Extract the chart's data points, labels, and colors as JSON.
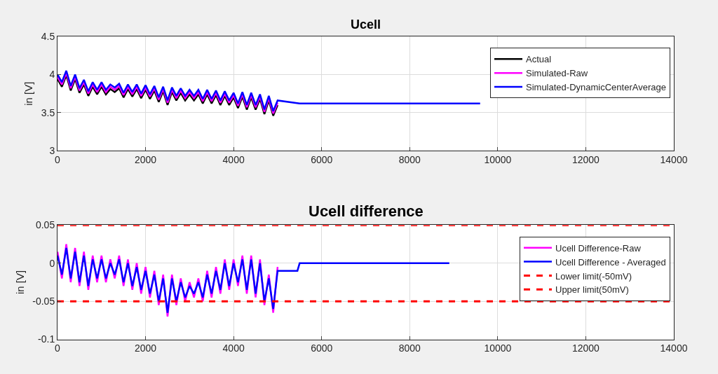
{
  "chart_data": [
    {
      "type": "line",
      "title": "Ucell",
      "ylabel": "in [V]",
      "xlim": [
        0,
        14000
      ],
      "xticks": [
        0,
        2000,
        4000,
        6000,
        8000,
        10000,
        12000,
        14000
      ],
      "ylim": [
        3,
        4.5
      ],
      "yticks": [
        3,
        3.5,
        4,
        4.5
      ],
      "grid": true,
      "legend": "top right",
      "line_style": "solid",
      "x": [
        0,
        100,
        200,
        300,
        400,
        500,
        600,
        700,
        800,
        900,
        1000,
        1100,
        1200,
        1300,
        1400,
        1500,
        1600,
        1700,
        1800,
        1900,
        2000,
        2100,
        2200,
        2300,
        2400,
        2500,
        2600,
        2700,
        2800,
        2900,
        3000,
        3100,
        3200,
        3300,
        3400,
        3500,
        3600,
        3700,
        3800,
        3900,
        4000,
        4100,
        4200,
        4300,
        4400,
        4500,
        4600,
        4700,
        4800,
        4900,
        5000,
        5500,
        9600
      ],
      "series": [
        {
          "name": "Actual",
          "color": "#000000",
          "values": [
            3.94,
            3.84,
            3.99,
            3.79,
            3.94,
            3.76,
            3.87,
            3.72,
            3.84,
            3.74,
            3.84,
            3.74,
            3.81,
            3.77,
            3.82,
            3.7,
            3.81,
            3.71,
            3.81,
            3.69,
            3.8,
            3.68,
            3.79,
            3.64,
            3.78,
            3.6,
            3.77,
            3.66,
            3.76,
            3.66,
            3.74,
            3.66,
            3.74,
            3.62,
            3.74,
            3.62,
            3.73,
            3.6,
            3.72,
            3.6,
            3.7,
            3.56,
            3.71,
            3.54,
            3.7,
            3.54,
            3.68,
            3.48,
            3.66,
            3.46,
            3.6,
            null,
            null
          ]
        },
        {
          "name": "Simulated-Raw",
          "color": "#ff00ff",
          "values": [
            3.97,
            3.87,
            4.02,
            3.82,
            3.97,
            3.79,
            3.9,
            3.75,
            3.87,
            3.77,
            3.87,
            3.77,
            3.84,
            3.8,
            3.85,
            3.73,
            3.84,
            3.74,
            3.84,
            3.72,
            3.83,
            3.71,
            3.82,
            3.67,
            3.81,
            3.63,
            3.8,
            3.69,
            3.79,
            3.69,
            3.77,
            3.69,
            3.77,
            3.65,
            3.77,
            3.65,
            3.76,
            3.63,
            3.75,
            3.63,
            3.73,
            3.59,
            3.74,
            3.57,
            3.73,
            3.57,
            3.71,
            3.51,
            3.69,
            3.49,
            3.63,
            null,
            null
          ]
        },
        {
          "name": "Simulated-DynamicCenterAverage",
          "color": "#0000ff",
          "values": [
            4.0,
            3.9,
            4.05,
            3.85,
            4.0,
            3.82,
            3.93,
            3.78,
            3.9,
            3.8,
            3.9,
            3.8,
            3.87,
            3.83,
            3.88,
            3.76,
            3.87,
            3.77,
            3.87,
            3.75,
            3.86,
            3.74,
            3.85,
            3.7,
            3.84,
            3.66,
            3.83,
            3.72,
            3.82,
            3.72,
            3.8,
            3.72,
            3.8,
            3.68,
            3.8,
            3.68,
            3.79,
            3.66,
            3.78,
            3.66,
            3.76,
            3.62,
            3.77,
            3.6,
            3.76,
            3.6,
            3.74,
            3.54,
            3.72,
            3.52,
            3.66,
            3.62,
            3.62
          ]
        }
      ]
    },
    {
      "type": "line",
      "title": "Ucell difference",
      "ylabel": "in [V]",
      "xlim": [
        0,
        14000
      ],
      "xticks": [
        0,
        2000,
        4000,
        6000,
        8000,
        10000,
        12000,
        14000
      ],
      "ylim": [
        -0.1,
        0.05
      ],
      "yticks": [
        -0.1,
        -0.05,
        0,
        0.05
      ],
      "grid": true,
      "legend": "top right",
      "line_style": "solid",
      "x": [
        0,
        100,
        200,
        300,
        400,
        500,
        600,
        700,
        800,
        900,
        1000,
        1100,
        1200,
        1300,
        1400,
        1500,
        1600,
        1700,
        1800,
        1900,
        2000,
        2100,
        2200,
        2300,
        2400,
        2500,
        2600,
        2700,
        2800,
        2900,
        3000,
        3100,
        3200,
        3300,
        3400,
        3500,
        3600,
        3700,
        3800,
        3900,
        4000,
        4100,
        4200,
        4300,
        4400,
        4500,
        4600,
        4700,
        4800,
        4900,
        5000,
        5450,
        5500,
        8900
      ],
      "series": [
        {
          "name": "Ucell Difference-Raw",
          "color": "#ff00ff",
          "values": [
            0.015,
            -0.02,
            0.025,
            -0.025,
            0.02,
            -0.03,
            0.015,
            -0.035,
            0.01,
            -0.025,
            0.01,
            -0.025,
            0.005,
            -0.02,
            0.01,
            -0.03,
            0.005,
            -0.035,
            0.0,
            -0.04,
            -0.005,
            -0.045,
            -0.01,
            -0.055,
            -0.015,
            -0.07,
            -0.015,
            -0.055,
            -0.02,
            -0.05,
            -0.025,
            -0.045,
            -0.02,
            -0.05,
            -0.01,
            -0.045,
            -0.005,
            -0.04,
            0.005,
            -0.035,
            0.005,
            -0.03,
            0.01,
            -0.04,
            0.01,
            -0.045,
            0.005,
            -0.055,
            -0.015,
            -0.065,
            -0.005,
            null,
            null,
            null
          ]
        },
        {
          "name": "Ucell Difference - Averaged",
          "color": "#0000ff",
          "values": [
            0.01,
            -0.015,
            0.02,
            -0.02,
            0.015,
            -0.025,
            0.01,
            -0.03,
            0.005,
            -0.02,
            0.005,
            -0.02,
            0.0,
            -0.015,
            0.005,
            -0.025,
            0.0,
            -0.03,
            -0.005,
            -0.035,
            -0.01,
            -0.04,
            -0.015,
            -0.05,
            -0.02,
            -0.065,
            -0.02,
            -0.05,
            -0.025,
            -0.045,
            -0.03,
            -0.04,
            -0.025,
            -0.045,
            -0.015,
            -0.04,
            -0.01,
            -0.035,
            0.0,
            -0.03,
            0.0,
            -0.025,
            0.005,
            -0.035,
            0.005,
            -0.04,
            0.0,
            -0.05,
            -0.02,
            -0.06,
            -0.01,
            -0.01,
            0.0,
            0.0
          ]
        }
      ],
      "ref_lines": [
        {
          "axis": "y",
          "value": -0.05,
          "label": "Lower limit(-50mV)",
          "color": "#ff0000",
          "line_style": "dashed"
        },
        {
          "axis": "y",
          "value": 0.05,
          "label": "Upper limit(50mV)",
          "color": "#ff0000",
          "line_style": "dashed"
        }
      ]
    }
  ]
}
